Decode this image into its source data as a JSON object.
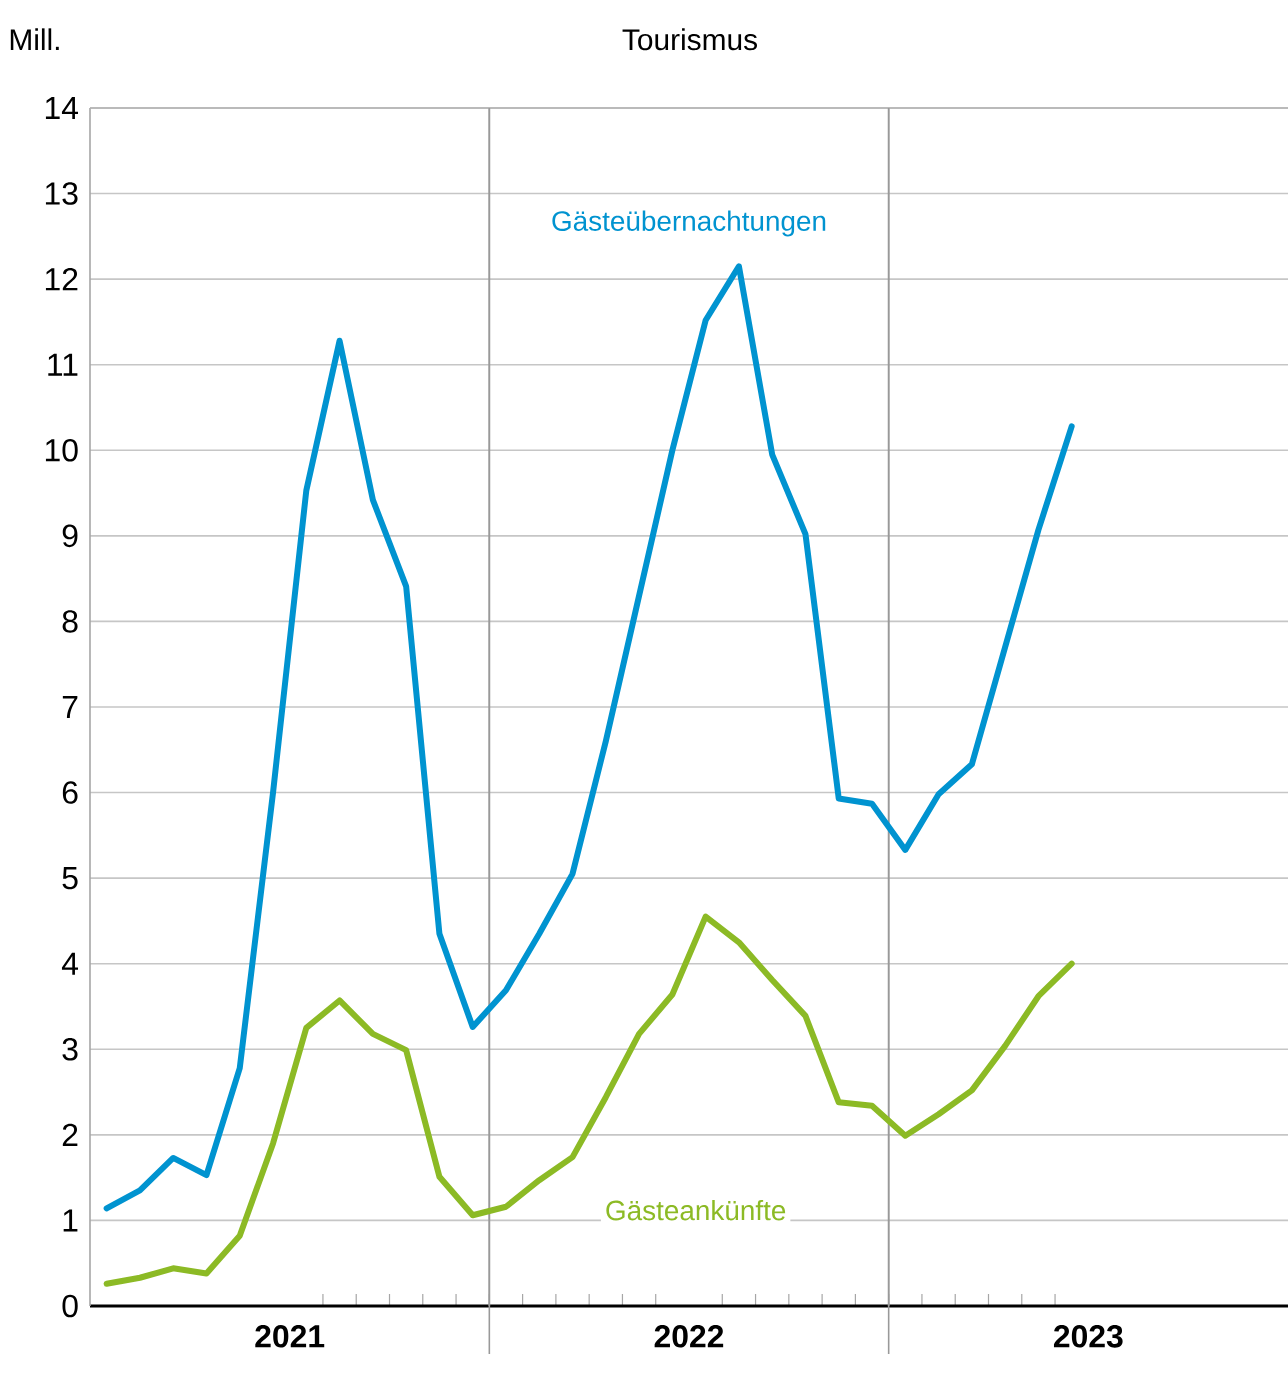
{
  "chart_data": {
    "type": "line",
    "title": "Tourismus",
    "ylabel": "Mill.",
    "x": [
      "2021-01-16",
      "2021-02-16",
      "2021-03-16",
      "2021-04-16",
      "2021-05-16",
      "2021-06-16",
      "2021-07-16",
      "2021-08-16",
      "2021-09-16",
      "2021-10-16",
      "2021-11-16",
      "2021-12-16",
      "2022-01-16",
      "2022-02-16",
      "2022-03-16",
      "2022-04-16",
      "2022-05-16",
      "2022-06-16",
      "2022-07-16",
      "2022-08-16",
      "2022-09-16",
      "2022-10-16",
      "2022-11-16",
      "2022-12-16",
      "2023-01-16",
      "2023-02-16",
      "2023-03-16",
      "2023-04-16",
      "2023-05-16",
      "2023-06-16"
    ],
    "series": [
      {
        "name": "Gästeübernachtungen",
        "color": "#0093d0",
        "values": [
          1.14,
          1.35,
          1.73,
          1.53,
          2.78,
          6.0,
          9.53,
          11.28,
          9.42,
          8.41,
          4.35,
          3.26,
          3.69,
          4.35,
          5.05,
          6.6,
          8.3,
          10.0,
          11.52,
          12.15,
          9.95,
          9.02,
          5.93,
          5.87,
          5.33,
          5.98,
          6.33,
          7.7,
          9.07,
          10.28
        ]
      },
      {
        "name": "Gästeankünfte",
        "color": "#8cba25",
        "values": [
          0.26,
          0.33,
          0.44,
          0.38,
          0.82,
          1.9,
          3.25,
          3.57,
          3.18,
          2.99,
          1.51,
          1.06,
          1.16,
          1.47,
          1.74,
          2.44,
          3.18,
          3.64,
          4.55,
          4.25,
          3.81,
          3.39,
          2.38,
          2.34,
          1.99,
          2.24,
          2.52,
          3.04,
          3.62,
          4.0
        ]
      }
    ],
    "xlim": [
      "2021-01-01",
      "2024-01-01"
    ],
    "xticks": [
      {
        "value": "2021-07-01",
        "label": "2021"
      },
      {
        "value": "2022-01-01",
        "label": null
      },
      {
        "value": "2022-07-01",
        "label": "2022"
      },
      {
        "value": "2023-01-01",
        "label": null
      },
      {
        "value": "2023-07-01",
        "label": "2023"
      }
    ],
    "ylim": [
      0,
      14
    ],
    "yticks": [
      0,
      1,
      2,
      3,
      4,
      5,
      6,
      7,
      8,
      9,
      10,
      11,
      12,
      13,
      14
    ],
    "grid": true,
    "marker": "none",
    "line_style": "solid"
  }
}
